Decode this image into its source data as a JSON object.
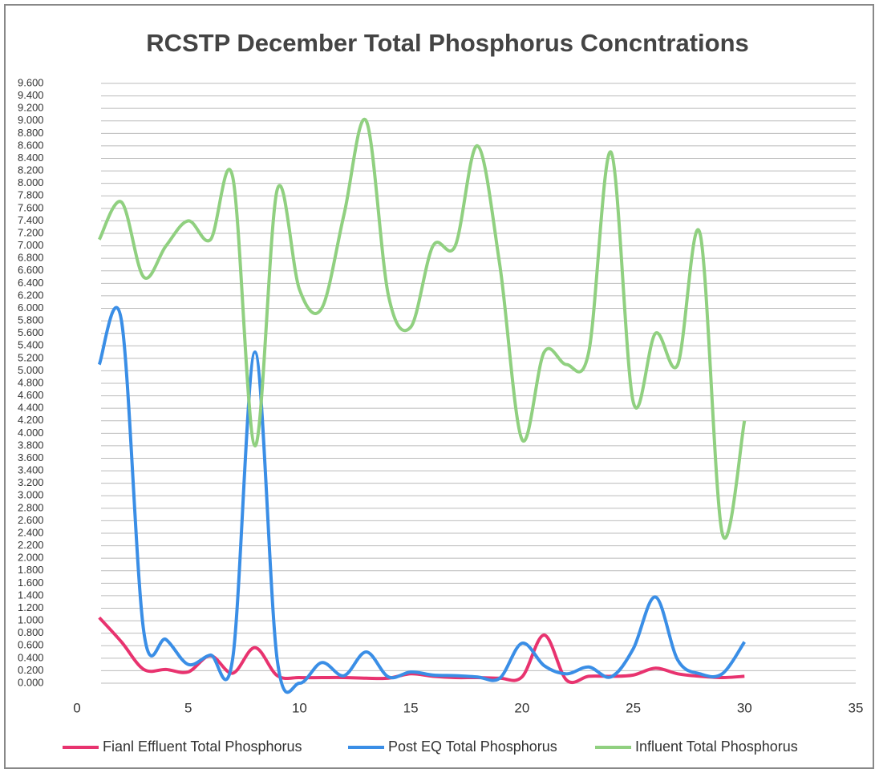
{
  "chart_data": {
    "type": "line",
    "title": "RCSTP December Total Phosphorus Concntrations",
    "x": [
      1,
      2,
      3,
      4,
      5,
      6,
      7,
      8,
      9,
      10,
      11,
      12,
      13,
      14,
      15,
      16,
      17,
      18,
      19,
      20,
      21,
      22,
      23,
      24,
      25,
      26,
      27,
      28,
      29,
      30
    ],
    "series": [
      {
        "name": "Fianl Effluent Total Phosphorus",
        "color": "#e8336f",
        "values": [
          1.05,
          0.66,
          0.22,
          0.22,
          0.18,
          0.44,
          0.16,
          0.57,
          0.12,
          0.09,
          0.09,
          0.09,
          0.08,
          0.08,
          0.15,
          0.11,
          0.09,
          0.09,
          0.08,
          0.1,
          0.77,
          0.05,
          0.11,
          0.11,
          0.13,
          0.24,
          0.15,
          0.11,
          0.09,
          0.11
        ]
      },
      {
        "name": "Post EQ Total Phosphorus",
        "color": "#3a8ee6",
        "values": [
          5.1,
          5.8,
          0.83,
          0.7,
          0.3,
          0.45,
          0.4,
          5.3,
          0.37,
          0.0,
          0.33,
          0.12,
          0.5,
          0.1,
          0.18,
          0.13,
          0.12,
          0.1,
          0.08,
          0.64,
          0.28,
          0.15,
          0.26,
          0.1,
          0.55,
          1.38,
          0.37,
          0.15,
          0.15,
          0.66
        ]
      },
      {
        "name": "Influent Total Phosphorus",
        "color": "#90d080",
        "values": [
          7.1,
          7.7,
          6.5,
          7.0,
          7.4,
          7.1,
          8.1,
          3.8,
          7.9,
          6.3,
          6.0,
          7.5,
          9.0,
          6.2,
          5.7,
          7.0,
          7.0,
          8.6,
          6.7,
          3.9,
          5.3,
          5.1,
          5.3,
          8.5,
          4.5,
          5.6,
          5.1,
          7.2,
          2.4,
          4.2
        ]
      }
    ],
    "xlim": [
      0,
      35
    ],
    "xticks": [
      0,
      5,
      10,
      15,
      20,
      25,
      30,
      35
    ],
    "ylim": [
      0,
      9.6
    ],
    "yticks": [
      {
        "value": 0,
        "label": "0.000"
      },
      {
        "value": 0.2,
        "label": "0.200"
      },
      {
        "value": 0.4,
        "label": "0.400"
      },
      {
        "value": 0.6,
        "label": "0.600"
      },
      {
        "value": 0.8,
        "label": "0.800"
      },
      {
        "value": 1.0,
        "label": "1.000"
      },
      {
        "value": 1.2,
        "label": "1.200"
      },
      {
        "value": 1.4,
        "label": "1.400"
      },
      {
        "value": 1.6,
        "label": "1.600"
      },
      {
        "value": 1.8,
        "label": "1.800"
      },
      {
        "value": 2.0,
        "label": "2.000"
      },
      {
        "value": 2.2,
        "label": "2.200"
      },
      {
        "value": 2.4,
        "label": "2.400"
      },
      {
        "value": 2.6,
        "label": "2.600"
      },
      {
        "value": 2.8,
        "label": "2.800"
      },
      {
        "value": 3.0,
        "label": "3.000"
      },
      {
        "value": 3.2,
        "label": "3.200"
      },
      {
        "value": 3.4,
        "label": "3.400"
      },
      {
        "value": 3.6,
        "label": "3.600"
      },
      {
        "value": 3.8,
        "label": "3.800"
      },
      {
        "value": 4.0,
        "label": "4.000"
      },
      {
        "value": 4.2,
        "label": "4.200"
      },
      {
        "value": 4.4,
        "label": "4.400"
      },
      {
        "value": 4.6,
        "label": "4.600"
      },
      {
        "value": 4.8,
        "label": "4.800"
      },
      {
        "value": 5.0,
        "label": "5.000"
      },
      {
        "value": 5.2,
        "label": "5.200"
      },
      {
        "value": 5.4,
        "label": "5.400"
      },
      {
        "value": 5.6,
        "label": "5.600"
      },
      {
        "value": 5.8,
        "label": "5.800"
      },
      {
        "value": 6.0,
        "label": "6.000"
      },
      {
        "value": 6.2,
        "label": "6.200"
      },
      {
        "value": 6.4,
        "label": "6.400"
      },
      {
        "value": 6.6,
        "label": "6.600"
      },
      {
        "value": 6.8,
        "label": "6.800"
      },
      {
        "value": 7.0,
        "label": "7.000"
      },
      {
        "value": 7.2,
        "label": "7.200"
      },
      {
        "value": 7.4,
        "label": "7.400"
      },
      {
        "value": 7.6,
        "label": "7.600"
      },
      {
        "value": 7.8,
        "label": "7.800"
      },
      {
        "value": 8.0,
        "label": "8.000"
      },
      {
        "value": 8.2,
        "label": "8.200"
      },
      {
        "value": 8.4,
        "label": "8.400"
      },
      {
        "value": 8.6,
        "label": "8.600"
      },
      {
        "value": 8.8,
        "label": "8.800"
      },
      {
        "value": 9.0,
        "label": "9.000"
      },
      {
        "value": 9.2,
        "label": "9.200"
      },
      {
        "value": 9.4,
        "label": "9.400"
      },
      {
        "value": 9.6,
        "label": "9.600"
      }
    ],
    "grid": true,
    "legend": "bottom"
  }
}
